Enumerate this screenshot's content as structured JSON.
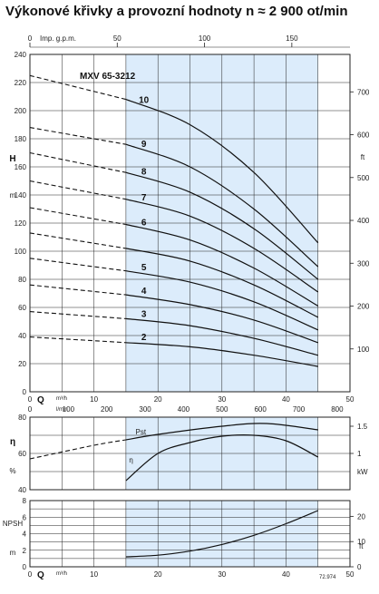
{
  "page_title": "Výkonové křivky a provozní hodnoty n ≈ 2 900 ot/min",
  "model_label": "MXV 65-3212",
  "figure_code": "72.974",
  "colors": {
    "region": "#dcecfb",
    "grid": "#222222",
    "curve": "#111111"
  },
  "chart_data": [
    {
      "type": "line",
      "name": "head",
      "ylabel": "H",
      "ylabel_unit": "m",
      "ylim": [
        0,
        240
      ],
      "yticks": [
        0,
        20,
        40,
        60,
        80,
        100,
        120,
        140,
        160,
        180,
        200,
        220,
        240
      ],
      "y2label": "ft",
      "y2ticks": [
        100,
        200,
        300,
        400,
        500,
        600,
        700
      ],
      "xlim": [
        0,
        50
      ],
      "xticks": [
        0,
        10,
        20,
        30,
        40,
        50
      ],
      "xlabel": "Q",
      "xlabel_unit": "m³/h",
      "x_lmin_label": "l/min",
      "x_lmin_ticks": [
        0,
        100,
        200,
        300,
        400,
        500,
        600,
        700,
        800
      ],
      "x_gpm_label": "Imp. g.p.m.",
      "x_gpm_ticks": [
        0,
        50,
        100,
        150
      ],
      "operating_range": [
        15,
        45
      ],
      "curve_end": 45,
      "series": [
        {
          "name": "10",
          "dashed_until": 15,
          "points": [
            [
              0,
              225
            ],
            [
              15,
              208
            ],
            [
              25,
              190
            ],
            [
              35,
              156
            ],
            [
              45,
              106
            ]
          ]
        },
        {
          "name": "9",
          "dashed_until": 15,
          "points": [
            [
              0,
              188
            ],
            [
              15,
              176
            ],
            [
              25,
              160
            ],
            [
              35,
              130
            ],
            [
              45,
              89
            ]
          ]
        },
        {
          "name": "8",
          "dashed_until": 15,
          "points": [
            [
              0,
              170
            ],
            [
              15,
              156
            ],
            [
              25,
              142
            ],
            [
              35,
              116
            ],
            [
              45,
              80
            ]
          ]
        },
        {
          "name": "7",
          "dashed_until": 15,
          "points": [
            [
              0,
              150
            ],
            [
              15,
              137
            ],
            [
              25,
              125
            ],
            [
              35,
              102
            ],
            [
              45,
              71
            ]
          ]
        },
        {
          "name": "6",
          "dashed_until": 15,
          "points": [
            [
              0,
              131
            ],
            [
              15,
              119
            ],
            [
              25,
              108
            ],
            [
              35,
              88
            ],
            [
              45,
              61
            ]
          ]
        },
        {
          "name": "",
          "dashed_until": 15,
          "points": [
            [
              0,
              113
            ],
            [
              15,
              102
            ],
            [
              25,
              93
            ],
            [
              35,
              76
            ],
            [
              45,
              53
            ]
          ]
        },
        {
          "name": "5",
          "dashed_until": 15,
          "points": [
            [
              0,
              95
            ],
            [
              15,
              86
            ],
            [
              25,
              78
            ],
            [
              35,
              64
            ],
            [
              45,
              44
            ]
          ]
        },
        {
          "name": "4",
          "dashed_until": 15,
          "points": [
            [
              0,
              76
            ],
            [
              15,
              69
            ],
            [
              25,
              62
            ],
            [
              35,
              51
            ],
            [
              45,
              35
            ]
          ]
        },
        {
          "name": "3",
          "dashed_until": 15,
          "points": [
            [
              0,
              57
            ],
            [
              15,
              52
            ],
            [
              25,
              47
            ],
            [
              35,
              38
            ],
            [
              45,
              26
            ]
          ]
        },
        {
          "name": "2",
          "dashed_until": 15,
          "points": [
            [
              0,
              39
            ],
            [
              15,
              35
            ],
            [
              25,
              32
            ],
            [
              35,
              26
            ],
            [
              45,
              18
            ]
          ]
        }
      ]
    },
    {
      "type": "line",
      "name": "efficiency_power",
      "ylabel": "η",
      "ylabel_unit": "%",
      "ylim": [
        40,
        80
      ],
      "yticks": [
        40,
        60,
        80
      ],
      "y2label": "kW",
      "y2ticks": [
        1,
        1.5
      ],
      "xlim": [
        0,
        50
      ],
      "xticks": [
        0,
        10,
        20,
        30,
        40,
        50
      ],
      "operating_range": [
        15,
        45
      ],
      "series": [
        {
          "name": "Pst",
          "dashed_until": 15,
          "points": [
            [
              0,
              57
            ],
            [
              10,
              64.5
            ],
            [
              15,
              67.5
            ],
            [
              20,
              70.5
            ],
            [
              30,
              75
            ],
            [
              37,
              76.5
            ],
            [
              45,
              73
            ]
          ]
        },
        {
          "name": "η",
          "dashed_until": 15,
          "points": [
            [
              15,
              45
            ],
            [
              20,
              60
            ],
            [
              25,
              66
            ],
            [
              30,
              69.5
            ],
            [
              35,
              70
            ],
            [
              40,
              67
            ],
            [
              45,
              58
            ]
          ]
        }
      ]
    },
    {
      "type": "line",
      "name": "npsh",
      "ylabel": "NPSH",
      "ylabel_unit": "m",
      "ylim": [
        0,
        8
      ],
      "yticks": [
        0,
        2,
        4,
        6,
        8
      ],
      "y2label": "ft",
      "y2ticks": [
        0,
        10,
        20
      ],
      "xlim": [
        0,
        50
      ],
      "xticks": [
        0,
        10,
        20,
        30,
        40,
        50
      ],
      "xlabel": "Q",
      "xlabel_unit": "m³/h",
      "operating_range": [
        15,
        45
      ],
      "series": [
        {
          "name": "NPSH",
          "points": [
            [
              15,
              1.2
            ],
            [
              20,
              1.4
            ],
            [
              25,
              1.9
            ],
            [
              30,
              2.7
            ],
            [
              35,
              3.8
            ],
            [
              40,
              5.2
            ],
            [
              45,
              6.8
            ]
          ]
        }
      ]
    }
  ]
}
